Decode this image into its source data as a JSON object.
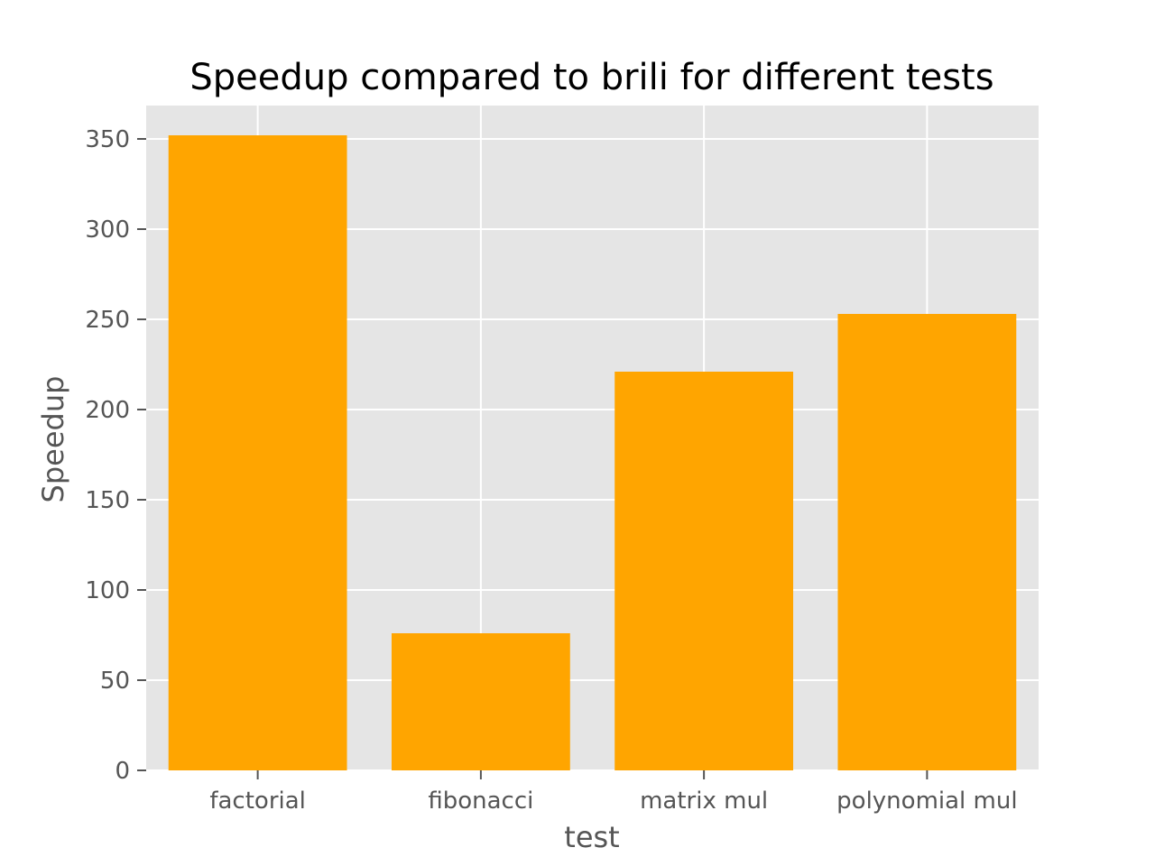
{
  "chart_data": {
    "type": "bar",
    "title": "Speedup compared to brili for different tests",
    "xlabel": "test",
    "ylabel": "Speedup",
    "categories": [
      "factorial",
      "fibonacci",
      "matrix mul",
      "polynomial mul"
    ],
    "values": [
      352,
      76,
      221,
      253
    ],
    "ylim": [
      0,
      368.5
    ],
    "yticks": [
      0,
      50,
      100,
      150,
      200,
      250,
      300,
      350
    ],
    "grid": true,
    "legend": "none",
    "colors": {
      "bar": "#ffa500",
      "plot_background": "#e5e5e5",
      "grid": "#ffffff",
      "tick_text": "#555555",
      "title_text": "#000000"
    }
  }
}
